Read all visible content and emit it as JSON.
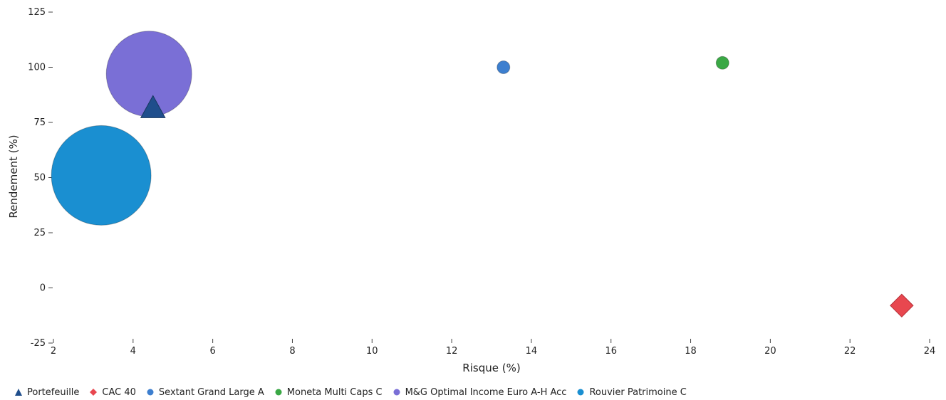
{
  "chart_data": {
    "type": "bubble",
    "title": "",
    "xlabel": "Risque (%)",
    "ylabel": "Rendement (%)",
    "xlim": [
      2,
      24
    ],
    "ylim": [
      -25,
      125
    ],
    "xticks": [
      2,
      4,
      6,
      8,
      10,
      12,
      14,
      16,
      18,
      20,
      22,
      24
    ],
    "yticks": [
      -25,
      0,
      25,
      50,
      75,
      100,
      125
    ],
    "grid": false,
    "legend_position": "bottom-left",
    "series": [
      {
        "name": "Portefeuille",
        "marker": "triangle",
        "color": "#1f4e8c",
        "points": [
          {
            "x": 4.5,
            "y": 81,
            "size": 1
          }
        ]
      },
      {
        "name": "CAC 40",
        "marker": "diamond",
        "color": "#e8474f",
        "points": [
          {
            "x": 23.3,
            "y": -8,
            "size": 1
          }
        ]
      },
      {
        "name": "Sextant Grand Large A",
        "marker": "circle",
        "color": "#3d7fcf",
        "points": [
          {
            "x": 13.3,
            "y": 100,
            "size": 1
          }
        ]
      },
      {
        "name": "Moneta Multi Caps C",
        "marker": "circle",
        "color": "#3aa845",
        "points": [
          {
            "x": 18.8,
            "y": 102,
            "size": 1
          }
        ]
      },
      {
        "name": "M&G Optimal Income Euro A-H Acc",
        "marker": "circle",
        "color": "#7a6fd6",
        "points": [
          {
            "x": 4.4,
            "y": 97,
            "size": 30
          }
        ]
      },
      {
        "name": "Rouvier Patrimoine C",
        "marker": "circle",
        "color": "#1a8fd1",
        "points": [
          {
            "x": 3.2,
            "y": 51,
            "size": 35
          }
        ]
      }
    ]
  }
}
